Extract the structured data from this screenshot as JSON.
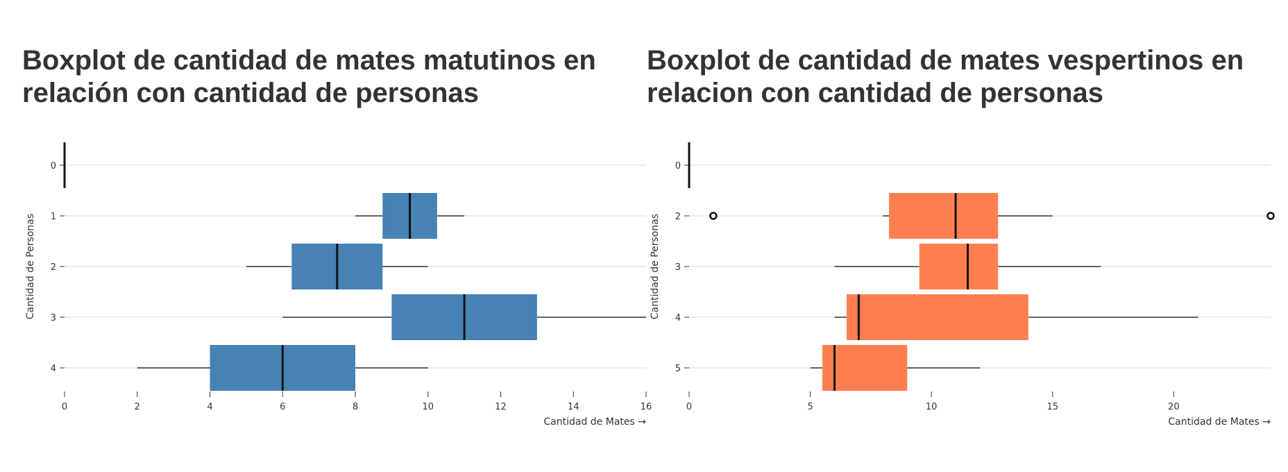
{
  "chart_data": [
    {
      "type": "boxplot",
      "title": "Boxplot de cantidad de mates matutinos en relación con cantidad de personas",
      "xlabel": "Cantidad de Mates →",
      "ylabel": "Cantidad de Personas",
      "xlim": [
        0,
        16
      ],
      "xticks": [
        0,
        2,
        4,
        6,
        8,
        10,
        12,
        14,
        16
      ],
      "categories": [
        "0",
        "1",
        "2",
        "3",
        "4"
      ],
      "color": "#4682b4",
      "boxes": [
        {
          "category": "0",
          "min": 0,
          "q1": 0,
          "median": 0,
          "q3": 0,
          "max": 0,
          "outliers": []
        },
        {
          "category": "1",
          "min": 8,
          "q1": 8.75,
          "median": 9.5,
          "q3": 10.25,
          "max": 11,
          "outliers": []
        },
        {
          "category": "2",
          "min": 5,
          "q1": 6.25,
          "median": 7.5,
          "q3": 8.75,
          "max": 10,
          "outliers": []
        },
        {
          "category": "3",
          "min": 6,
          "q1": 9,
          "median": 11,
          "q3": 13,
          "max": 16,
          "outliers": []
        },
        {
          "category": "4",
          "min": 2,
          "q1": 4,
          "median": 6,
          "q3": 8,
          "max": 10,
          "outliers": []
        }
      ],
      "grid": "horizontal"
    },
    {
      "type": "boxplot",
      "title": "Boxplot de cantidad de mates vespertinos en relacion con cantidad de personas",
      "xlabel": "Cantidad de Mates →",
      "ylabel": "Cantidad de Personas",
      "xlim": [
        0,
        24
      ],
      "xticks": [
        0,
        5,
        10,
        15,
        20
      ],
      "categories": [
        "0",
        "2",
        "3",
        "4",
        "5"
      ],
      "color": "#ff7f50",
      "boxes": [
        {
          "category": "0",
          "min": 0,
          "q1": 0,
          "median": 0,
          "q3": 0,
          "max": 0,
          "outliers": []
        },
        {
          "category": "2",
          "min": 8,
          "q1": 8.25,
          "median": 11,
          "q3": 12.75,
          "max": 15,
          "outliers": [
            1,
            24
          ]
        },
        {
          "category": "3",
          "min": 6,
          "q1": 9.5,
          "median": 11.5,
          "q3": 12.75,
          "max": 17,
          "outliers": []
        },
        {
          "category": "4",
          "min": 6,
          "q1": 6.5,
          "median": 7,
          "q3": 14,
          "max": 21,
          "outliers": []
        },
        {
          "category": "5",
          "min": 5,
          "q1": 5.5,
          "median": 6,
          "q3": 9,
          "max": 12,
          "outliers": []
        }
      ],
      "grid": "horizontal"
    }
  ]
}
